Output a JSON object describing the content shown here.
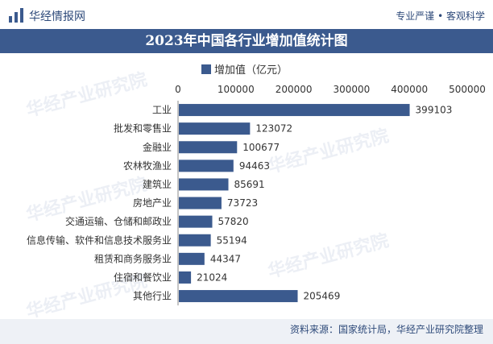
{
  "header": {
    "brand": "华经情报网",
    "slogan": "专业严谨 • 客观科学"
  },
  "watermark_text": "华经产业研究院",
  "footer": {
    "source": "资料来源：国家统计局，华经产业研究院整理"
  },
  "colors": {
    "bar": "#3b5a8e",
    "title_bg": "#3b5a8e",
    "text": "#2e4a7a"
  },
  "chart_data": {
    "type": "bar",
    "orientation": "horizontal",
    "title": "2023年中国各行业增加值统计图",
    "legend": "增加值（亿元）",
    "legend_position": "top",
    "xlim": [
      0,
      500000
    ],
    "xticks": [
      "0",
      "100000",
      "200000",
      "300000",
      "400000",
      "500000"
    ],
    "xtick_values": [
      0,
      100000,
      200000,
      300000,
      400000,
      500000
    ],
    "grid": false,
    "categories": [
      "工业",
      "批发和零售业",
      "金融业",
      "农林牧渔业",
      "建筑业",
      "房地产业",
      "交通运输、仓储和邮政业",
      "信息传输、软件和信息技术服务业",
      "租赁和商务服务业",
      "住宿和餐饮业",
      "其他行业"
    ],
    "values": [
      399103,
      123072,
      100677,
      94463,
      85691,
      73723,
      57820,
      55194,
      44347,
      21024,
      205469
    ],
    "labels": [
      "399103",
      "123072",
      "100677",
      "94463",
      "85691",
      "73723",
      "57820",
      "55194",
      "44347",
      "21024",
      "205469"
    ]
  }
}
